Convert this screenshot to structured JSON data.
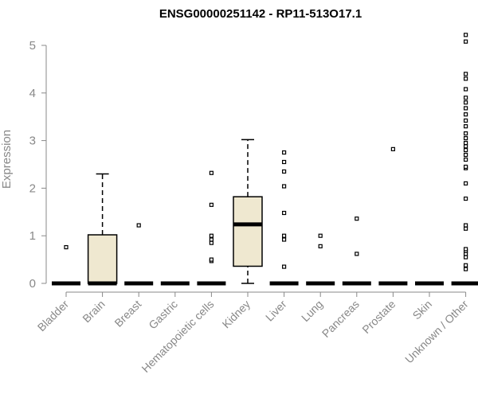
{
  "chart_data": {
    "type": "box",
    "title": "ENSG00000251142 - RP11-513O17.1",
    "xlabel": "",
    "ylabel": "Expression",
    "ylim": [
      0,
      5.25
    ],
    "yticks": [
      "0",
      "1",
      "2",
      "3",
      "4",
      "5"
    ],
    "box_fill": "#efe8d0",
    "categories": [
      "Bladder",
      "Brain",
      "Breast",
      "Gastric",
      "Hematopoietic cells",
      "Kidney",
      "Liver",
      "Lung",
      "Pancreas",
      "Prostate",
      "Skin",
      "Unknown / Other"
    ],
    "boxes": [
      {
        "category": "Bladder",
        "min": 0,
        "q1": 0,
        "median": 0,
        "q3": 0,
        "max": 0,
        "outliers": [
          0.76
        ]
      },
      {
        "category": "Brain",
        "min": 0,
        "q1": 0,
        "median": 0,
        "q3": 1.02,
        "max": 2.3,
        "outliers": []
      },
      {
        "category": "Breast",
        "min": 0,
        "q1": 0,
        "median": 0,
        "q3": 0,
        "max": 0,
        "outliers": [
          1.22
        ]
      },
      {
        "category": "Gastric",
        "min": 0,
        "q1": 0,
        "median": 0,
        "q3": 0,
        "max": 0,
        "outliers": []
      },
      {
        "category": "Hematopoietic cells",
        "min": 0,
        "q1": 0,
        "median": 0,
        "q3": 0,
        "max": 0,
        "outliers": [
          0.47,
          0.5,
          0.85,
          0.92,
          1.0,
          1.65,
          2.32
        ]
      },
      {
        "category": "Kidney",
        "min": 0,
        "q1": 0.36,
        "median": 1.24,
        "q3": 1.82,
        "max": 3.02,
        "outliers": []
      },
      {
        "category": "Liver",
        "min": 0,
        "q1": 0,
        "median": 0,
        "q3": 0,
        "max": 0,
        "outliers": [
          0.35,
          0.92,
          1.0,
          1.48,
          2.04,
          2.35,
          2.55,
          2.75
        ]
      },
      {
        "category": "Lung",
        "min": 0,
        "q1": 0,
        "median": 0,
        "q3": 0,
        "max": 0,
        "outliers": [
          0.78,
          1.0
        ]
      },
      {
        "category": "Pancreas",
        "min": 0,
        "q1": 0,
        "median": 0,
        "q3": 0,
        "max": 0,
        "outliers": [
          0.62,
          1.36
        ]
      },
      {
        "category": "Prostate",
        "min": 0,
        "q1": 0,
        "median": 0,
        "q3": 0,
        "max": 0,
        "outliers": [
          2.82
        ]
      },
      {
        "category": "Skin",
        "min": 0,
        "q1": 0,
        "median": 0,
        "q3": 0,
        "max": 0,
        "outliers": []
      },
      {
        "category": "Unknown / Other",
        "min": 0,
        "q1": 0,
        "median": 0,
        "q3": 0,
        "max": 0,
        "outliers": [
          0.3,
          0.38,
          0.55,
          0.62,
          0.68,
          0.72,
          1.15,
          1.22,
          1.78,
          2.1,
          2.42,
          2.45,
          2.6,
          2.7,
          2.8,
          2.88,
          2.95,
          3.05,
          3.15,
          3.3,
          3.42,
          3.55,
          3.68,
          3.8,
          3.9,
          4.08,
          4.3,
          4.4,
          5.08,
          5.22
        ]
      }
    ]
  }
}
